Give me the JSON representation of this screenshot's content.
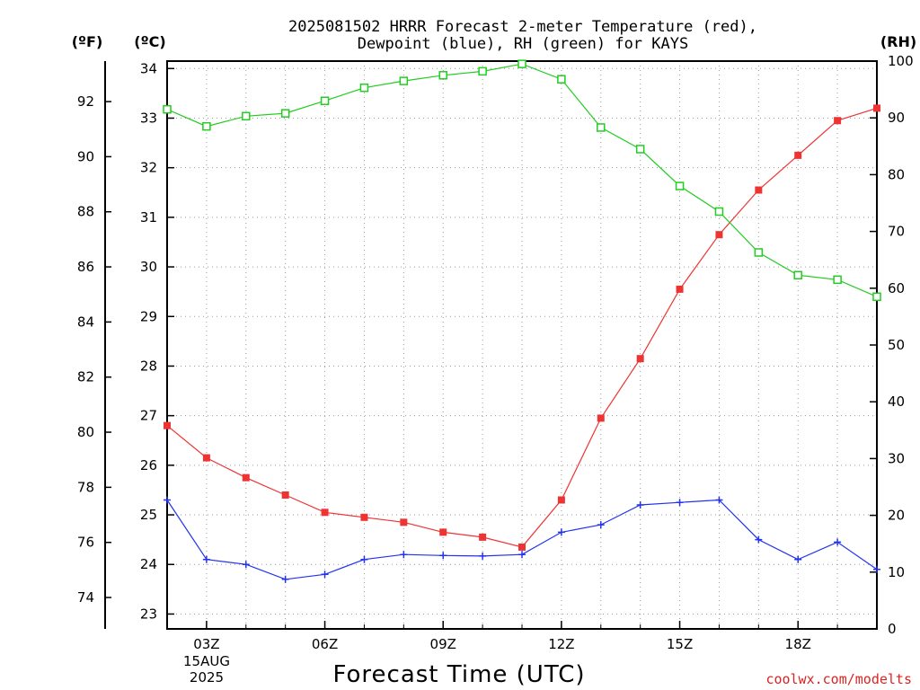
{
  "chart_data": {
    "type": "line",
    "title_line1": "2025081502 HRRR Forecast 2-meter Temperature (red),",
    "title_line2": "Dewpoint (blue), RH (green) for KAYS",
    "xlabel": "Forecast Time (UTC)",
    "unit_f": "(ºF)",
    "unit_c": "(ºC)",
    "unit_rh": "(RH)",
    "credit": "coolwx.com/modelts",
    "date_label": [
      "15AUG",
      "2025"
    ],
    "x_hours": [
      2,
      3,
      4,
      5,
      6,
      7,
      8,
      9,
      10,
      11,
      12,
      13,
      14,
      15,
      16,
      17,
      18,
      19,
      20
    ],
    "x_range": [
      2,
      20
    ],
    "x_ticks": [
      {
        "hour": 3,
        "label": "03Z"
      },
      {
        "hour": 6,
        "label": "06Z"
      },
      {
        "hour": 9,
        "label": "09Z"
      },
      {
        "hour": 12,
        "label": "12Z"
      },
      {
        "hour": 15,
        "label": "15Z"
      },
      {
        "hour": 18,
        "label": "18Z"
      }
    ],
    "y_celsius_range": [
      22.7,
      34.15
    ],
    "y_celsius_ticks": [
      "23",
      "24",
      "25",
      "26",
      "27",
      "28",
      "29",
      "30",
      "31",
      "32",
      "33",
      "34"
    ],
    "y_fahrenheit_ticks": [
      "74",
      "76",
      "78",
      "80",
      "82",
      "84",
      "86",
      "88",
      "90",
      "92"
    ],
    "y_rh_range": [
      0,
      100
    ],
    "y_rh_ticks": [
      "0",
      "10",
      "20",
      "30",
      "40",
      "50",
      "60",
      "70",
      "80",
      "90",
      "100"
    ],
    "grid": true,
    "series": [
      {
        "name": "Temperature",
        "color": "#ee3333",
        "marker": "filled-square",
        "axis": "celsius",
        "values": [
          26.8,
          26.15,
          25.75,
          25.4,
          25.05,
          24.95,
          24.85,
          24.65,
          24.55,
          24.35,
          25.3,
          26.95,
          28.15,
          29.55,
          30.65,
          31.55,
          32.25,
          32.95,
          33.2
        ]
      },
      {
        "name": "Dewpoint",
        "color": "#2233ee",
        "marker": "plus",
        "axis": "celsius",
        "values": [
          25.3,
          24.1,
          24.0,
          23.7,
          23.8,
          24.1,
          24.2,
          24.18,
          24.17,
          24.2,
          24.65,
          24.8,
          25.2,
          25.25,
          25.3,
          24.5,
          24.1,
          24.45,
          23.9
        ]
      },
      {
        "name": "RH",
        "color": "#22cc22",
        "marker": "open-square",
        "axis": "rh",
        "values": [
          91.5,
          88.5,
          90.3,
          90.8,
          93.0,
          95.3,
          96.5,
          97.5,
          98.2,
          99.5,
          96.8,
          88.3,
          84.5,
          78.0,
          73.5,
          66.3,
          62.3,
          61.5,
          58.5
        ]
      }
    ]
  }
}
